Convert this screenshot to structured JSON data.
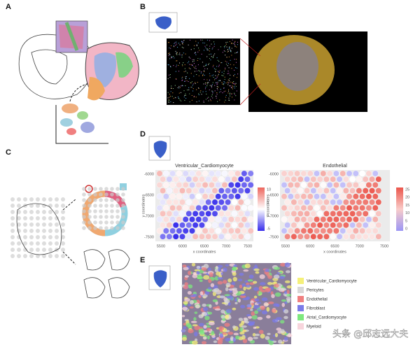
{
  "panels": {
    "labels": [
      "A",
      "B",
      "C",
      "D",
      "E"
    ]
  },
  "panel_d": {
    "plots": [
      {
        "title": "Ventricular_Cardiomyocyte",
        "xlabel": "x coordinates",
        "ylabel": "y coordinates",
        "xticks": [
          5500,
          6000,
          6500,
          7000,
          7500
        ],
        "yticks": [
          -6000,
          -6500,
          -7000,
          -7500
        ],
        "colorbar_ticks": [
          10,
          5,
          0,
          -5
        ]
      },
      {
        "title": "Endothelial",
        "xlabel": "x coordinates",
        "ylabel": "y coordinates",
        "xticks": [
          5500,
          6000,
          6500,
          7000,
          7500
        ],
        "yticks": [
          -6000,
          -6500,
          -7000,
          -7500
        ],
        "colorbar_ticks": [
          25,
          20,
          15,
          10,
          5,
          0
        ]
      }
    ]
  },
  "panel_e": {
    "legend": [
      {
        "name": "Ventricular_Cardiomyocyte",
        "color": "#f5f07a"
      },
      {
        "name": "Pericytes",
        "color": "#d8d8d8"
      },
      {
        "name": "Endothelial",
        "color": "#f08080"
      },
      {
        "name": "Fibroblast",
        "color": "#7b7be8"
      },
      {
        "name": "Atrial_Cardiomyocyte",
        "color": "#7ee87e"
      },
      {
        "name": "Myeloid",
        "color": "#f7d5dc"
      }
    ]
  },
  "watermark": "头条 @邱志远大夫"
}
